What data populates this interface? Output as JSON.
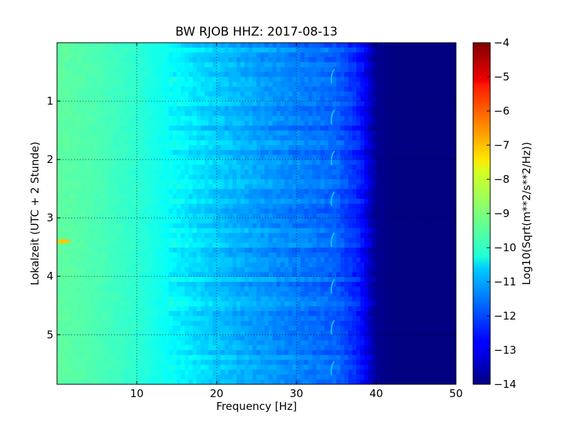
{
  "chart_data": {
    "type": "heatmap",
    "title": "BW RJOB HHZ: 2017-08-13",
    "xlabel": "Frequency [Hz]",
    "ylabel": "Lokalzeit (UTC + 2 Stunde)",
    "xlim": [
      0,
      50
    ],
    "ylim": [
      5.85,
      0
    ],
    "x_ticks": [
      10,
      20,
      30,
      40,
      50
    ],
    "y_ticks": [
      1,
      2,
      3,
      4,
      5
    ],
    "grid": true,
    "colormap": "jet",
    "colorbar": {
      "label": "Log10(Sqrt(m**2/s**2/Hz))",
      "range": [
        -14,
        -4
      ],
      "ticks": [
        -4,
        -5,
        -6,
        -7,
        -8,
        -9,
        -10,
        -11,
        -12,
        -13,
        -14
      ]
    },
    "approx_levels_by_frequency": {
      "frequency_hz": [
        0,
        5,
        10,
        15,
        20,
        25,
        30,
        35,
        38,
        40,
        42,
        45,
        50
      ],
      "log10_amplitude": [
        -9.3,
        -9.5,
        -9.8,
        -10.3,
        -10.8,
        -11.2,
        -11.5,
        -11.8,
        -12.5,
        -13.8,
        -14,
        -14,
        -14
      ]
    },
    "features": [
      {
        "frequency_hz": 0.8,
        "time_h": 3.4,
        "log10_amplitude": -7.2
      },
      {
        "frequency_hz": 34.5,
        "time_h": 0.6,
        "log10_amplitude": -10.8
      },
      {
        "frequency_hz": 34.5,
        "time_h": 1.3,
        "log10_amplitude": -10.8
      },
      {
        "frequency_hz": 34.5,
        "time_h": 2.0,
        "log10_amplitude": -10.8
      },
      {
        "frequency_hz": 34.5,
        "time_h": 2.7,
        "log10_amplitude": -10.8
      },
      {
        "frequency_hz": 34.5,
        "time_h": 3.4,
        "log10_amplitude": -10.8
      },
      {
        "frequency_hz": 34.5,
        "time_h": 4.2,
        "log10_amplitude": -10.8
      },
      {
        "frequency_hz": 34.5,
        "time_h": 4.9,
        "log10_amplitude": -10.8
      },
      {
        "frequency_hz": 34.5,
        "time_h": 5.6,
        "log10_amplitude": -10.8
      }
    ]
  }
}
